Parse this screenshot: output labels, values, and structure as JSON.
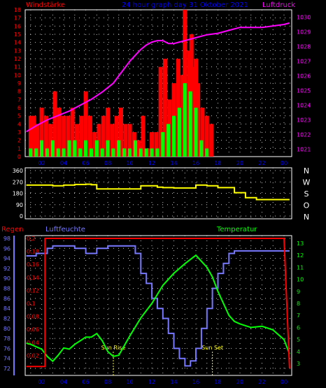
{
  "header": {
    "left_label": "Windstärke",
    "title": "24 hour graph day 31 Oktober 2021",
    "right_label": "Luftdruck"
  },
  "colors": {
    "background": "#000000",
    "frame": "#ffffff",
    "grid": "#c8c8c8",
    "wind_gust": "#ff0000",
    "wind_avg": "#00ff00",
    "pressure": "#ff00ff",
    "direction": "#ffff00",
    "rain": "#ff0000",
    "humidity": "#7878ff",
    "temperature": "#00ff00",
    "title": "#0000ff",
    "left_axis": "#ff0000",
    "right_axis_pressure": "#ff00ff",
    "right_axis_temp": "#00ff00",
    "hour_labels": "#0000ff"
  },
  "x_ticks": [
    "02",
    "04",
    "06",
    "08",
    "10",
    "12",
    "14",
    "16",
    "18",
    "20",
    "22",
    "00"
  ],
  "chart_data": [
    {
      "type": "bar",
      "title": "24 hour graph day 31 Oktober 2021",
      "left_axis_label": "Windstärke",
      "right_axis_label": "Luftdruck",
      "left_ticks": [
        "0",
        "1",
        "2",
        "3",
        "4",
        "5",
        "6",
        "7",
        "8",
        "9",
        "10",
        "11",
        "12",
        "13",
        "14",
        "15",
        "16",
        "17",
        "18"
      ],
      "right_ticks": [
        "1021",
        "1022",
        "1023",
        "1024",
        "1025",
        "1026",
        "1027",
        "1028",
        "1029",
        "1030"
      ],
      "left_range": [
        0,
        18
      ],
      "right_range": [
        1020.5,
        1030.5
      ],
      "x_range_hours": [
        0.5,
        24.7
      ],
      "grid": "dotted",
      "series": [
        {
          "name": "Windstärke",
          "kind": "gust",
          "x": [
            1.0,
            1.3,
            1.6,
            2.0,
            2.4,
            2.8,
            3.2,
            3.6,
            4.0,
            4.4,
            4.8,
            5.2,
            5.6,
            6.0,
            6.4,
            6.8,
            7.2,
            7.6,
            8.0,
            8.4,
            8.8,
            9.2,
            9.6,
            10.0,
            10.4,
            10.8,
            11.2,
            11.6,
            12.0,
            12.4,
            12.8,
            13.2,
            13.6,
            14.0,
            14.4,
            14.8,
            15.0,
            15.2,
            15.4,
            15.6,
            15.8,
            16.0,
            16.2,
            16.6,
            17.0,
            17.4
          ],
          "values": [
            5,
            5,
            4,
            6,
            5,
            4,
            8,
            6,
            5,
            5,
            6,
            4,
            5,
            8,
            5,
            3,
            4,
            5,
            6,
            4,
            5,
            6,
            4,
            4,
            3,
            2,
            5,
            1,
            3,
            3,
            11,
            12,
            7,
            9,
            12,
            10,
            18,
            9,
            13,
            15,
            11,
            12,
            9,
            6,
            5,
            4
          ]
        },
        {
          "name": "Windstärke",
          "kind": "average",
          "x": [
            1.0,
            1.5,
            2.0,
            2.5,
            3.0,
            3.5,
            4.0,
            4.5,
            5.0,
            5.5,
            6.0,
            6.5,
            7.0,
            7.5,
            8.0,
            8.5,
            9.0,
            9.5,
            10.0,
            10.5,
            11.0,
            11.5,
            12.0,
            12.5,
            13.0,
            13.5,
            14.0,
            14.5,
            15.0,
            15.5,
            16.0,
            16.5,
            17.0
          ],
          "values": [
            1,
            1,
            2,
            1,
            2,
            1,
            1,
            2,
            2,
            1,
            2,
            1,
            2,
            1,
            2,
            1,
            2,
            1,
            1,
            2,
            1,
            1,
            1,
            1,
            3,
            4,
            5,
            6,
            9,
            8,
            6,
            2,
            1
          ]
        },
        {
          "name": "Luftdruck",
          "kind": "pressure",
          "x": [
            0.6,
            1.5,
            2.5,
            3.5,
            4.5,
            5.5,
            6.5,
            7.5,
            8.5,
            9.0,
            9.5,
            10.0,
            10.5,
            11.0,
            11.5,
            12.0,
            12.5,
            13.0,
            13.5,
            14.0,
            15.0,
            16.0,
            17.0,
            18.0,
            19.0,
            20.0,
            21.0,
            22.0,
            23.0,
            24.0,
            24.5
          ],
          "values": [
            1022.2,
            1022.6,
            1023.0,
            1023.3,
            1023.6,
            1024.0,
            1024.4,
            1024.9,
            1025.5,
            1026.0,
            1026.5,
            1027.0,
            1027.4,
            1027.8,
            1028.1,
            1028.3,
            1028.4,
            1028.4,
            1028.2,
            1028.2,
            1028.4,
            1028.6,
            1028.8,
            1028.9,
            1029.1,
            1029.3,
            1029.3,
            1029.3,
            1029.4,
            1029.5,
            1029.6
          ]
        }
      ]
    },
    {
      "type": "line",
      "right_axis_label": "N W S O N",
      "left_ticks": [
        "0",
        "90",
        "180",
        "270",
        "360"
      ],
      "right_letters": [
        "N",
        "W",
        "S",
        "O",
        "N"
      ],
      "left_range": [
        0,
        360
      ],
      "x_range_hours": [
        0.5,
        24.7
      ],
      "series": [
        {
          "name": "Windrichtung",
          "x": [
            0.6,
            2.5,
            3.0,
            4.0,
            5.0,
            6.0,
            6.5,
            7.0,
            10.5,
            11.0,
            12.0,
            12.5,
            13.0,
            14.0,
            16.0,
            17.0,
            18.0,
            19.5,
            20.5,
            21.5,
            24.5
          ],
          "values": [
            245,
            245,
            240,
            245,
            250,
            252,
            248,
            215,
            215,
            240,
            240,
            228,
            225,
            222,
            245,
            240,
            225,
            185,
            145,
            130,
            130
          ]
        }
      ]
    },
    {
      "type": "line",
      "left_axis_label": "Regen",
      "middle_axis_label": "Luftfeuchte",
      "right_axis_label": "Temperatur",
      "rain_ticks": [
        "0.02",
        "0.04",
        "0.06",
        "0.08",
        "0.1",
        "0.12",
        "0.14",
        "0.16",
        "0.18",
        "0.2"
      ],
      "humidity_ticks": [
        "72",
        "74",
        "76",
        "78",
        "80",
        "82",
        "84",
        "86",
        "88",
        "90",
        "92",
        "94",
        "96",
        "98"
      ],
      "temperature_ticks": [
        "3",
        "4",
        "5",
        "6",
        "7",
        "8",
        "9",
        "10",
        "11",
        "12",
        "13"
      ],
      "rain_range": [
        0.0,
        0.2
      ],
      "humidity_range": [
        72,
        98
      ],
      "temperature_range": [
        2.6,
        13.4
      ],
      "x_range_hours": [
        0.5,
        24.7
      ],
      "annotations": [
        {
          "label": "Sun Rise",
          "x": 8.5
        },
        {
          "label": "Sun Set",
          "x": 17.5
        }
      ],
      "series": [
        {
          "name": "Regen",
          "x": [
            0.6,
            1.5,
            2.3,
            2.3,
            2.9,
            3.0,
            24.0,
            24.5
          ],
          "values": [
            0.003,
            0.003,
            0.003,
            0.2,
            0.2,
            0.2,
            0.2,
            0.0
          ]
        },
        {
          "name": "Luftfeuchte",
          "x": [
            0.6,
            1.5,
            2.5,
            3.0,
            4.0,
            5.0,
            6.0,
            7.0,
            8.0,
            9.0,
            10.0,
            10.5,
            11.0,
            11.5,
            12.0,
            12.5,
            13.0,
            13.5,
            14.0,
            14.5,
            15.0,
            15.5,
            16.0,
            16.5,
            17.0,
            17.5,
            18.0,
            18.5,
            19.0,
            19.5,
            20.0,
            21.0,
            22.0,
            23.0,
            24.5
          ],
          "values": [
            94.5,
            95,
            96,
            96.5,
            96.5,
            96,
            95,
            96,
            96.5,
            96.5,
            96.5,
            95,
            91,
            89,
            86,
            84,
            82,
            79,
            76,
            74,
            72.5,
            73.5,
            76,
            80,
            84,
            88,
            91,
            93,
            95,
            95.5,
            95.5,
            95.5,
            95.5,
            95.5,
            95.5
          ]
        },
        {
          "name": "Temperatur",
          "x": [
            0.6,
            1.0,
            1.5,
            2.0,
            2.5,
            3.0,
            3.5,
            4.0,
            4.5,
            5.0,
            5.5,
            6.0,
            6.5,
            7.0,
            7.5,
            8.0,
            8.5,
            9.0,
            10.0,
            11.0,
            12.0,
            13.0,
            14.0,
            15.0,
            16.0,
            16.5,
            17.0,
            17.5,
            18.0,
            18.5,
            19.0,
            19.5,
            20.0,
            21.0,
            22.0,
            23.0,
            24.0,
            24.5
          ],
          "values": [
            4.7,
            4.6,
            4.4,
            4.2,
            3.6,
            3.2,
            3.7,
            4.3,
            4.2,
            4.6,
            4.9,
            5.2,
            5.2,
            5.5,
            4.9,
            4.0,
            3.6,
            3.7,
            5.3,
            6.8,
            8.0,
            9.5,
            10.5,
            11.3,
            12.0,
            11.5,
            11.0,
            10.2,
            9.0,
            8.0,
            7.0,
            6.5,
            6.3,
            6.0,
            6.1,
            5.8,
            5.0,
            3.8
          ]
        }
      ]
    }
  ]
}
